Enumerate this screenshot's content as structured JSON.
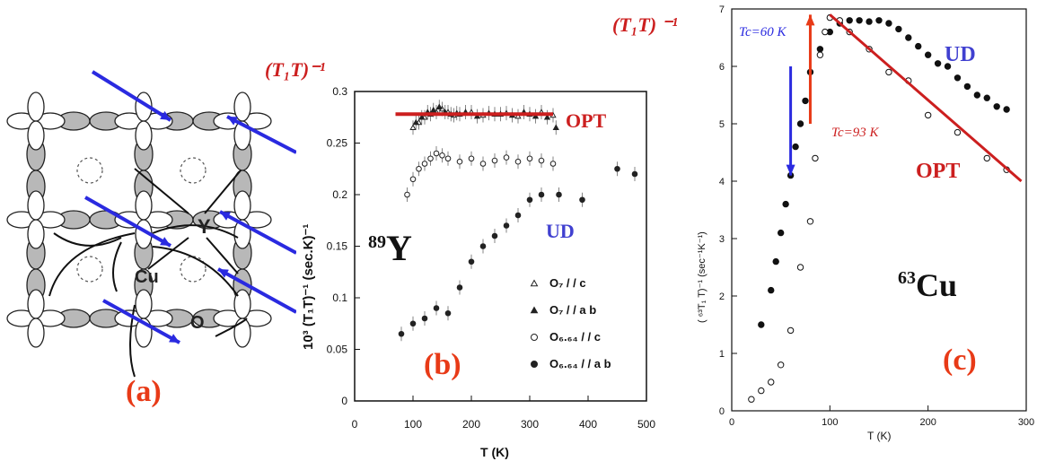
{
  "colors": {
    "red": "#cc1f1f",
    "orange_red": "#e83a17",
    "blue": "#2a2ae0",
    "gray_lobe": "#b8b8b8",
    "black": "#111111"
  },
  "panel_a": {
    "label": "(a)",
    "atom_y": "Y",
    "atom_cu": "Cu",
    "atom_o": "O"
  },
  "panel_b": {
    "label": "(b)",
    "y_title": "(T₁T)⁻¹",
    "ylabel": "10³ (T₁T)⁻¹  (sec.K)⁻¹",
    "xlabel": "T  (K)",
    "nucleus": "89Y",
    "opt_label": "OPT",
    "ud_label": "UD",
    "legend": [
      "O₇ / / c",
      "O₇ / / a b",
      "O₆.₆₄ / / c",
      "O₆.₆₄ / / a b"
    ]
  },
  "panel_c": {
    "label": "(c)",
    "y_title": "(T₁T) ⁻¹",
    "ylabel": "( ⁶³T₁ T)⁻¹ (sec⁻¹K⁻¹)",
    "xlabel": "T (K)",
    "nucleus": "63Cu",
    "opt_label": "OPT",
    "ud_label": "UD",
    "tc_ud": "Tc=60 K",
    "tc_opt": "Tc=93 K"
  },
  "chart_data": [
    {
      "type": "scatter",
      "panel": "b",
      "xlabel": "T  (K)",
      "ylabel": "10³ (T₁T)⁻¹  (sec.K)⁻¹",
      "xlim": [
        0,
        500
      ],
      "ylim": [
        0,
        0.3
      ],
      "xticks": [
        0,
        100,
        200,
        300,
        400,
        500
      ],
      "yticks": [
        0,
        0.05,
        0.1,
        0.15,
        0.2,
        0.25,
        0.3
      ],
      "series": [
        {
          "name": "O₇ / / c",
          "marker": "open-triangle",
          "x": [
            100,
            110,
            120,
            130,
            140,
            150,
            160,
            170,
            180,
            200,
            220,
            240,
            260,
            280,
            300,
            320,
            340
          ],
          "y": [
            0.265,
            0.27,
            0.275,
            0.278,
            0.28,
            0.283,
            0.28,
            0.277,
            0.278,
            0.28,
            0.277,
            0.278,
            0.279,
            0.276,
            0.278,
            0.28,
            0.277
          ]
        },
        {
          "name": "O₇ / / a b",
          "marker": "filled-triangle",
          "x": [
            105,
            115,
            125,
            135,
            145,
            155,
            165,
            175,
            190,
            210,
            230,
            250,
            270,
            290,
            310,
            330,
            345
          ],
          "y": [
            0.27,
            0.275,
            0.28,
            0.282,
            0.285,
            0.28,
            0.278,
            0.279,
            0.28,
            0.276,
            0.279,
            0.278,
            0.277,
            0.28,
            0.276,
            0.275,
            0.265
          ]
        },
        {
          "name": "O₆.₆₄ / / c",
          "marker": "open-circle",
          "x": [
            90,
            100,
            110,
            120,
            130,
            140,
            150,
            160,
            180,
            200,
            220,
            240,
            260,
            280,
            300,
            320,
            340
          ],
          "y": [
            0.2,
            0.215,
            0.225,
            0.23,
            0.235,
            0.24,
            0.238,
            0.235,
            0.232,
            0.235,
            0.23,
            0.233,
            0.236,
            0.232,
            0.235,
            0.233,
            0.23
          ]
        },
        {
          "name": "O₆.₆₄ / / a b",
          "marker": "filled-circle",
          "x": [
            80,
            100,
            120,
            140,
            160,
            180,
            200,
            220,
            240,
            260,
            280,
            300,
            320,
            350,
            390,
            450,
            480
          ],
          "y": [
            0.065,
            0.075,
            0.08,
            0.09,
            0.085,
            0.11,
            0.135,
            0.15,
            0.16,
            0.17,
            0.18,
            0.195,
            0.2,
            0.2,
            0.195,
            0.225,
            0.22
          ]
        }
      ],
      "annotations": [
        {
          "text": "OPT",
          "line_x": [
            70,
            340
          ],
          "line_y": [
            0.278,
            0.278
          ]
        },
        {
          "text": "UD"
        }
      ]
    },
    {
      "type": "scatter",
      "panel": "c",
      "xlabel": "T (K)",
      "ylabel": "( ⁶³T₁ T)⁻¹ (sec⁻¹K⁻¹)",
      "xlim": [
        0,
        300
      ],
      "ylim": [
        0,
        7
      ],
      "xticks": [
        0,
        100,
        200,
        300
      ],
      "yticks": [
        0,
        1,
        2,
        3,
        4,
        5,
        6,
        7
      ],
      "series": [
        {
          "name": "UD filled",
          "marker": "filled-circle",
          "x": [
            30,
            40,
            45,
            50,
            55,
            60,
            65,
            70,
            75,
            80,
            90,
            100,
            110,
            120,
            130,
            140,
            150,
            160,
            170,
            180,
            190,
            200,
            210,
            220,
            230,
            240,
            250,
            260,
            270,
            280
          ],
          "y": [
            1.5,
            2.1,
            2.6,
            3.1,
            3.6,
            4.1,
            4.6,
            5.0,
            5.4,
            5.9,
            6.3,
            6.6,
            6.75,
            6.8,
            6.8,
            6.78,
            6.8,
            6.75,
            6.65,
            6.5,
            6.35,
            6.2,
            6.05,
            6.0,
            5.8,
            5.65,
            5.5,
            5.45,
            5.3,
            5.25
          ]
        },
        {
          "name": "OPT open",
          "marker": "open-circle",
          "x": [
            20,
            30,
            40,
            50,
            60,
            70,
            80,
            85,
            90,
            95,
            100,
            110,
            120,
            140,
            160,
            180,
            200,
            230,
            260,
            280
          ],
          "y": [
            0.2,
            0.35,
            0.5,
            0.8,
            1.4,
            2.5,
            3.3,
            4.4,
            6.2,
            6.6,
            6.85,
            6.8,
            6.6,
            6.3,
            5.9,
            5.75,
            5.15,
            4.85,
            4.4,
            4.2
          ]
        }
      ],
      "annotations": [
        {
          "text": "OPT",
          "line_x": [
            100,
            295
          ],
          "line_y": [
            6.9,
            4.0
          ]
        },
        {
          "text": "UD"
        },
        {
          "text": "Tc=60 K",
          "arrow_x": 60,
          "arrow_y": [
            6.0,
            4.1
          ]
        },
        {
          "text": "Tc=93 K",
          "arrow_x": 80,
          "arrow_y": [
            5.0,
            6.9
          ]
        }
      ]
    }
  ]
}
